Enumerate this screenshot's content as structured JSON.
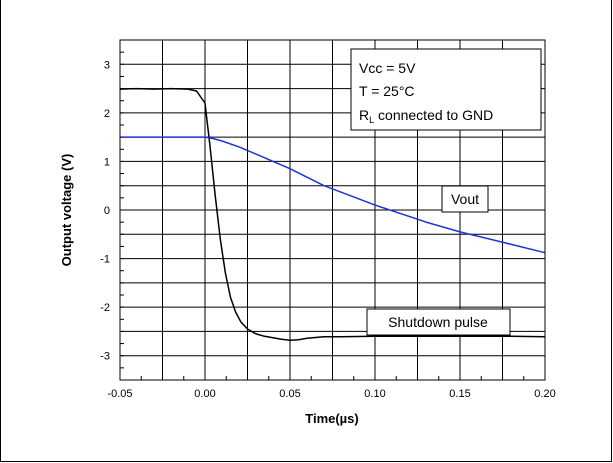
{
  "chart_data": {
    "type": "line",
    "title": "",
    "xlabel": "Time(µs)",
    "ylabel": "Output voltage (V)",
    "xlim": [
      -0.05,
      0.2
    ],
    "ylim": [
      -3.5,
      3.5
    ],
    "x_ticks": [
      "-0.05",
      "0.00",
      "0.05",
      "0.10",
      "0.15",
      "0.20"
    ],
    "y_ticks": [
      "-3",
      "-2",
      "-1",
      "0",
      "1",
      "2",
      "3"
    ],
    "grid": true,
    "series": [
      {
        "name": "Shutdown pulse",
        "color": "#000000",
        "x": [
          -0.05,
          -0.04,
          -0.03,
          -0.02,
          -0.01,
          -0.005,
          0.0,
          0.003,
          0.006,
          0.009,
          0.012,
          0.015,
          0.018,
          0.021,
          0.025,
          0.03,
          0.035,
          0.04,
          0.045,
          0.05,
          0.055,
          0.06,
          0.07,
          0.08,
          0.1,
          0.12,
          0.14,
          0.16,
          0.18,
          0.2
        ],
        "y": [
          2.49,
          2.5,
          2.49,
          2.5,
          2.49,
          2.45,
          2.2,
          1.3,
          0.3,
          -0.6,
          -1.3,
          -1.8,
          -2.1,
          -2.3,
          -2.45,
          -2.55,
          -2.6,
          -2.63,
          -2.66,
          -2.68,
          -2.67,
          -2.64,
          -2.61,
          -2.61,
          -2.6,
          -2.6,
          -2.6,
          -2.6,
          -2.6,
          -2.61
        ]
      },
      {
        "name": "Vout",
        "color": "#1a36d8",
        "x": [
          -0.05,
          -0.03,
          -0.01,
          0.0,
          0.005,
          0.01,
          0.02,
          0.03,
          0.05,
          0.07,
          0.1,
          0.13,
          0.15,
          0.17,
          0.2
        ],
        "y": [
          1.5,
          1.5,
          1.5,
          1.5,
          1.47,
          1.42,
          1.3,
          1.15,
          0.85,
          0.5,
          0.1,
          -0.25,
          -0.45,
          -0.62,
          -0.88
        ]
      }
    ],
    "annotations": {
      "conditions": [
        "Vcc = 5V",
        "T = 25°C"
      ],
      "load_main": "R",
      "load_sub": "L",
      "load_rest": " connected to GND",
      "vout_label": "Vout",
      "shutdown_label": "Shutdown pulse"
    }
  }
}
